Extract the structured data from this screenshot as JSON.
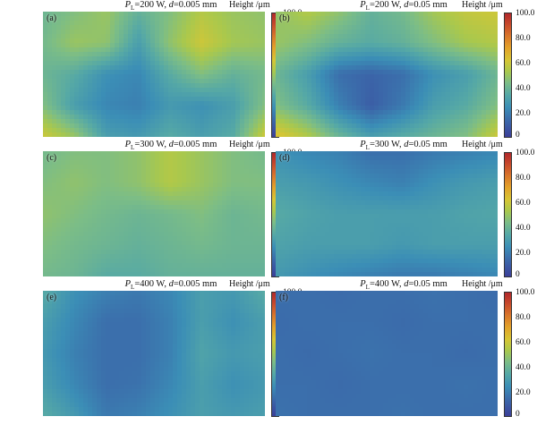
{
  "chart_data": {
    "type": "heatmap",
    "colorbar": {
      "title": "Height /μm",
      "ticks": [
        "100.0",
        "80.0",
        "60.0",
        "40.0",
        "20.0",
        "0"
      ],
      "range": [
        0,
        100
      ],
      "colors": [
        "#3b3f99",
        "#3b8eb6",
        "#7cbd86",
        "#d6c634",
        "#d8742b",
        "#b1282b"
      ]
    },
    "panels": [
      {
        "label": "(a)",
        "param1": "=200 W, ",
        "param2": "=0.005 mm",
        "cols": 8,
        "rows": 5,
        "grid": [
          [
            40,
            45,
            50,
            38,
            45,
            55,
            50,
            48
          ],
          [
            42,
            50,
            48,
            30,
            48,
            60,
            52,
            50
          ],
          [
            40,
            35,
            25,
            22,
            35,
            45,
            38,
            42
          ],
          [
            45,
            30,
            22,
            20,
            28,
            25,
            30,
            45
          ],
          [
            60,
            50,
            30,
            28,
            35,
            30,
            35,
            60
          ]
        ]
      },
      {
        "label": "(b)",
        "param1": "=200 W, ",
        "param2": "=0.05 mm",
        "cols": 8,
        "rows": 5,
        "grid": [
          [
            48,
            55,
            48,
            38,
            42,
            52,
            58,
            60
          ],
          [
            50,
            45,
            38,
            35,
            38,
            45,
            52,
            55
          ],
          [
            40,
            30,
            15,
            12,
            15,
            25,
            30,
            40
          ],
          [
            45,
            35,
            20,
            10,
            18,
            30,
            35,
            45
          ],
          [
            65,
            55,
            40,
            30,
            35,
            40,
            45,
            60
          ]
        ]
      },
      {
        "label": "(c)",
        "param1": "=300 W, ",
        "param2": "=0.005 mm",
        "cols": 8,
        "rows": 5,
        "grid": [
          [
            42,
            45,
            45,
            48,
            55,
            50,
            45,
            42
          ],
          [
            45,
            48,
            45,
            48,
            55,
            50,
            45,
            45
          ],
          [
            48,
            45,
            42,
            40,
            42,
            45,
            40,
            42
          ],
          [
            45,
            42,
            40,
            38,
            40,
            42,
            40,
            40
          ],
          [
            42,
            40,
            35,
            35,
            38,
            38,
            38,
            38
          ]
        ]
      },
      {
        "label": "(d)",
        "param1": "=300 W, ",
        "param2": "=0.05 mm",
        "cols": 8,
        "rows": 5,
        "grid": [
          [
            25,
            22,
            20,
            15,
            15,
            18,
            20,
            22
          ],
          [
            30,
            28,
            25,
            22,
            20,
            25,
            28,
            30
          ],
          [
            35,
            32,
            30,
            30,
            30,
            30,
            32,
            33
          ],
          [
            32,
            30,
            30,
            30,
            28,
            30,
            30,
            30
          ],
          [
            28,
            25,
            22,
            20,
            18,
            18,
            20,
            22
          ]
        ]
      },
      {
        "label": "(e)",
        "param1": "=400 W, ",
        "param2": "=0.005 mm",
        "cols": 8,
        "rows": 5,
        "grid": [
          [
            35,
            25,
            20,
            18,
            22,
            30,
            28,
            35
          ],
          [
            30,
            22,
            15,
            15,
            20,
            30,
            25,
            30
          ],
          [
            28,
            20,
            15,
            15,
            20,
            32,
            28,
            30
          ],
          [
            30,
            22,
            15,
            16,
            22,
            30,
            25,
            28
          ],
          [
            35,
            28,
            18,
            20,
            25,
            30,
            28,
            30
          ]
        ]
      },
      {
        "label": "(f)",
        "param1": "=400 W, ",
        "param2": "=0.05 mm",
        "cols": 8,
        "rows": 5,
        "grid": [
          [
            15,
            15,
            14,
            15,
            15,
            16,
            15,
            14
          ],
          [
            14,
            15,
            15,
            15,
            14,
            15,
            15,
            15
          ],
          [
            15,
            14,
            15,
            16,
            15,
            15,
            14,
            15
          ],
          [
            15,
            15,
            14,
            15,
            15,
            15,
            16,
            15
          ],
          [
            16,
            15,
            15,
            15,
            16,
            15,
            15,
            15
          ]
        ]
      }
    ]
  }
}
